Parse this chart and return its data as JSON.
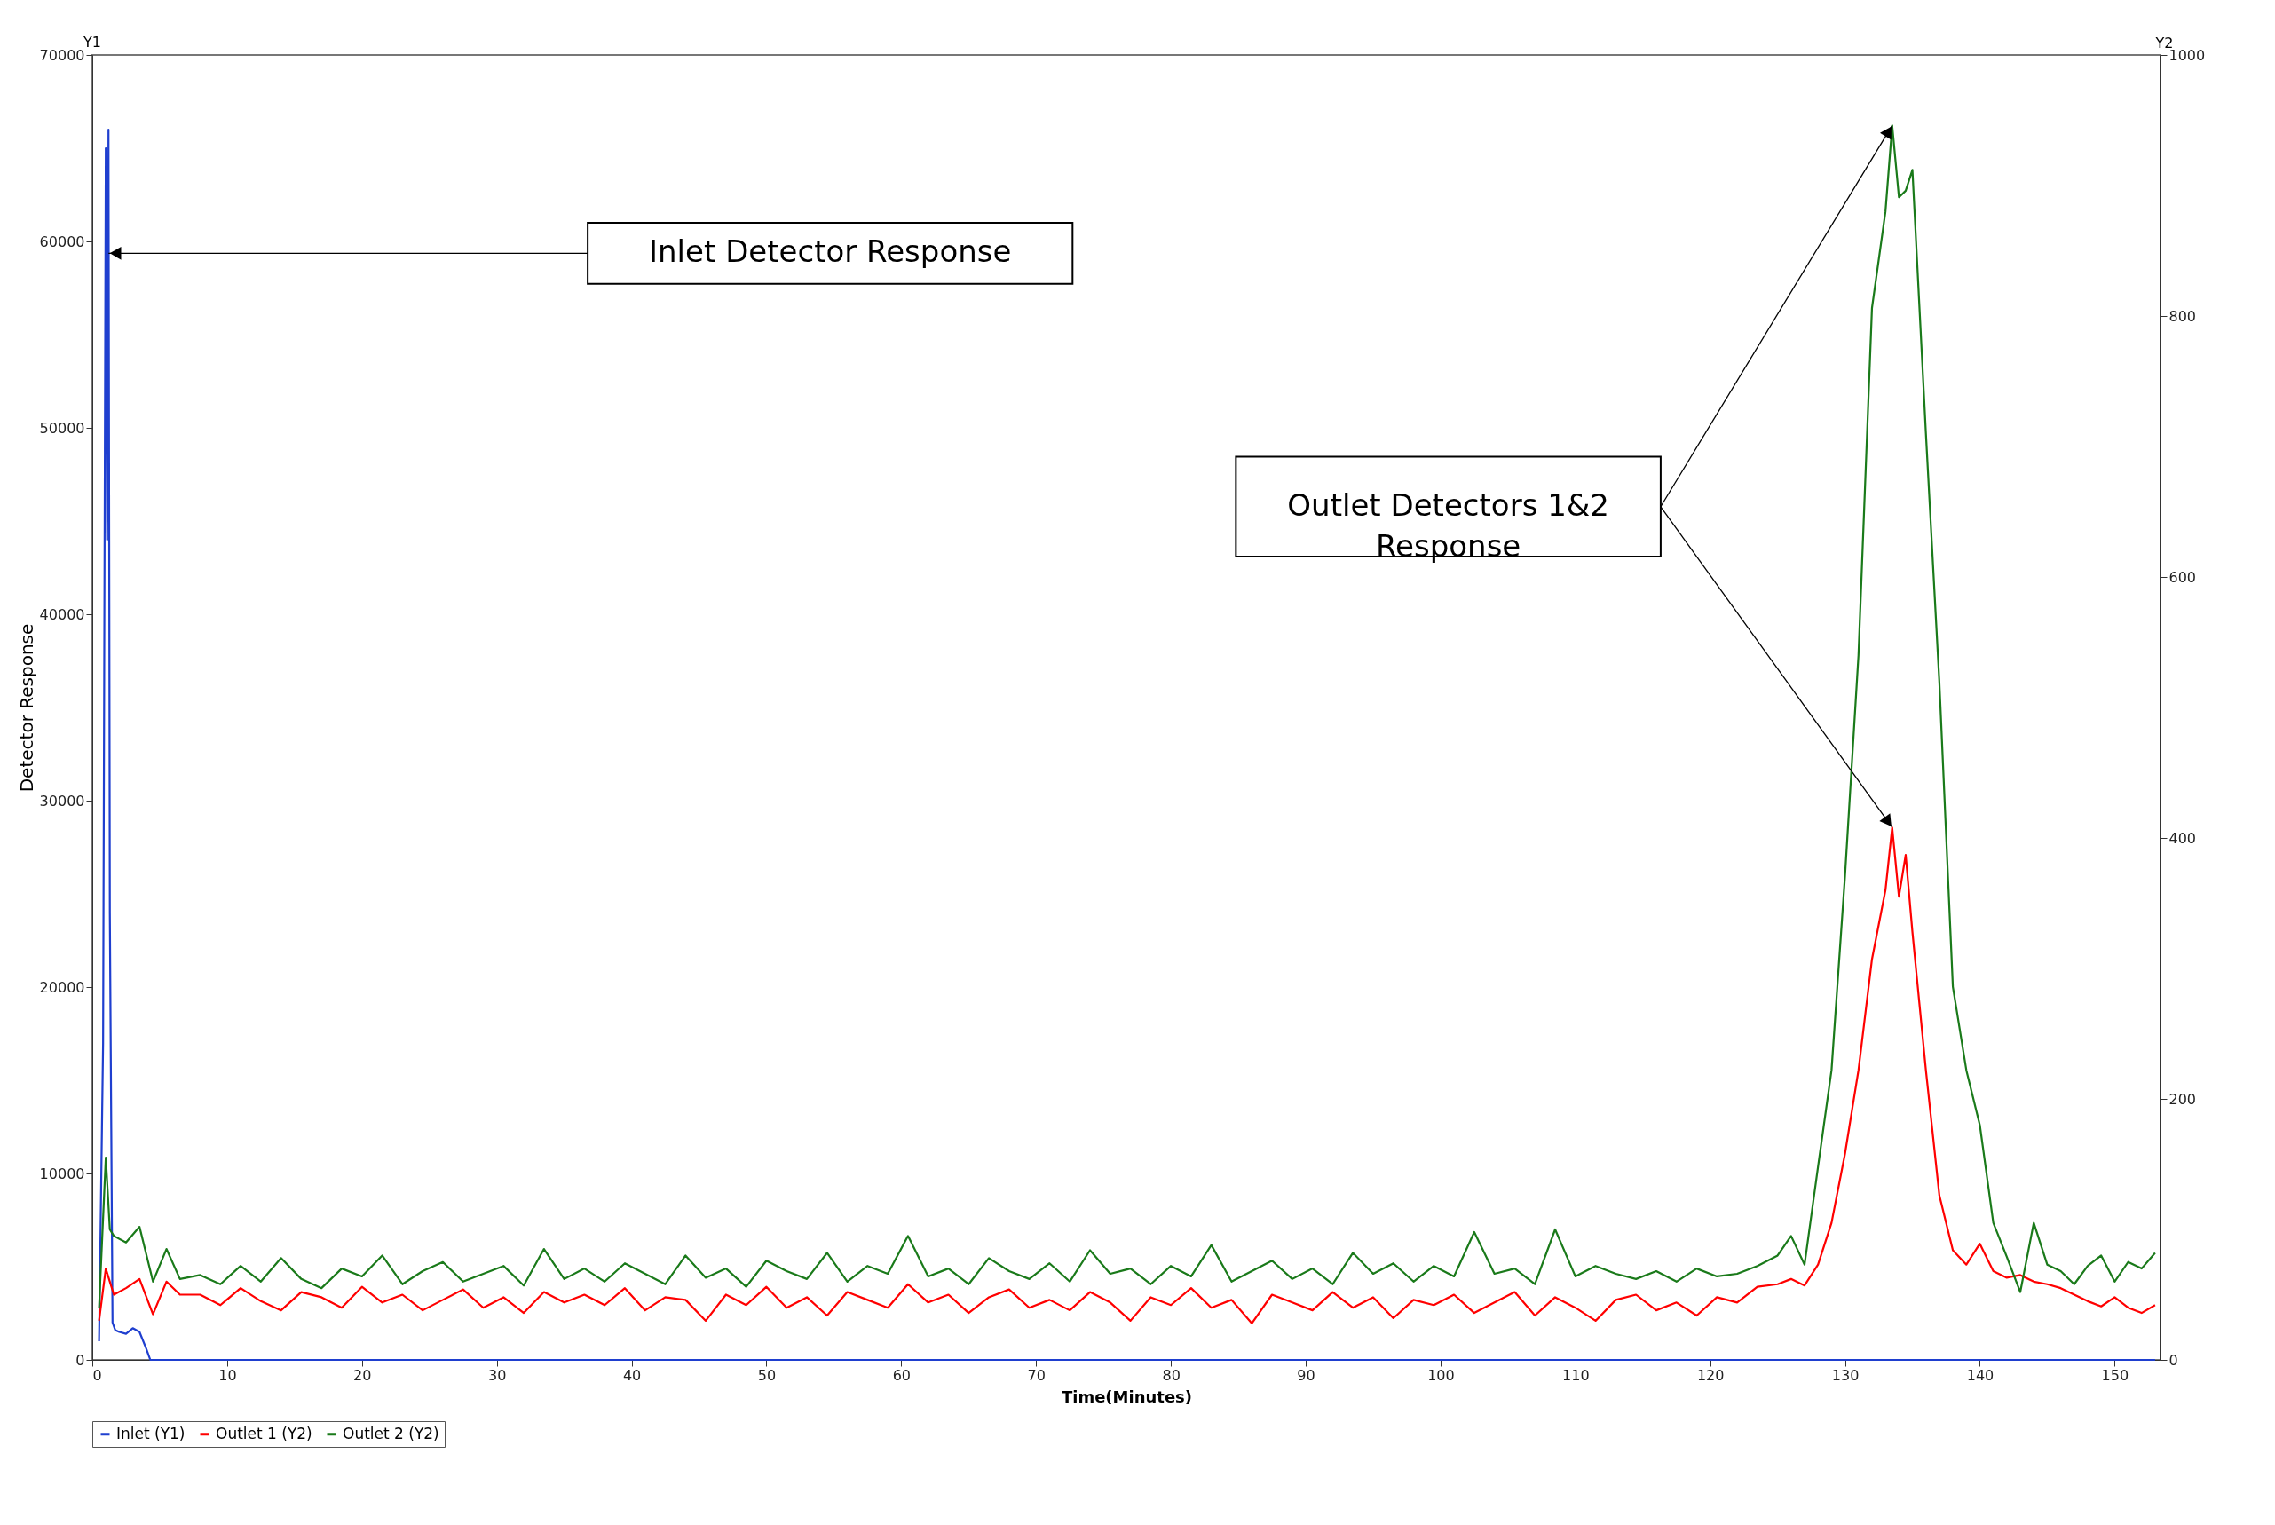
{
  "chart_data": {
    "type": "line",
    "xlabel": "Time(Minutes)",
    "ylabel": "Detector Response",
    "y2label": "Y2",
    "x": [
      0.5,
      1,
      1.3,
      1.6,
      2.5,
      3.5,
      4.5,
      5.5,
      6.5,
      8,
      9.5,
      11,
      12.5,
      14,
      15.5,
      17,
      18.5,
      20,
      21.5,
      23,
      24.5,
      26,
      27.5,
      29,
      30.5,
      32,
      33.5,
      35,
      36.5,
      38,
      39.5,
      41,
      42.5,
      44,
      45.5,
      47,
      48.5,
      50,
      51.5,
      53,
      54.5,
      56,
      57.5,
      59,
      60.5,
      62,
      63.5,
      65,
      66.5,
      68,
      69.5,
      71,
      72.5,
      74,
      75.5,
      77,
      78.5,
      80,
      81.5,
      83,
      84.5,
      86,
      87.5,
      89,
      90.5,
      92,
      93.5,
      95,
      96.5,
      98,
      99.5,
      101,
      102.5,
      104,
      105.5,
      107,
      108.5,
      110,
      111.5,
      113,
      114.5,
      116,
      117.5,
      119,
      120.5,
      122,
      123.5,
      125,
      126,
      127,
      128,
      129,
      130,
      131,
      132,
      133,
      133.5,
      134,
      134.5,
      135,
      136,
      137,
      138,
      139,
      140,
      141,
      142,
      143,
      144,
      145,
      146,
      147,
      148,
      149,
      150,
      151,
      152,
      153
    ],
    "series": [
      {
        "name": "Inlet (Y1)",
        "color": "#1f3fcf",
        "x": [
          0.5,
          0.8,
          1,
          1.1,
          1.2,
          1.3,
          1.5,
          1.7,
          2,
          2.5,
          3,
          3.5,
          4,
          4.3,
          4.6,
          10,
          50,
          100,
          153
        ],
        "values": [
          1000,
          17000,
          65000,
          44000,
          66000,
          24000,
          2000,
          1600,
          1500,
          1400,
          1700,
          1500,
          600,
          0,
          0,
          0,
          0,
          0,
          0
        ]
      },
      {
        "name": "Outlet 1 (Y2)",
        "color": "#ff0000",
        "axis": "y2",
        "values": [
          30,
          70,
          60,
          50,
          55,
          62,
          35,
          60,
          50,
          50,
          42,
          55,
          45,
          38,
          52,
          48,
          40,
          56,
          44,
          50,
          38,
          46,
          54,
          40,
          48,
          36,
          52,
          44,
          50,
          42,
          55,
          38,
          48,
          46,
          30,
          50,
          42,
          56,
          40,
          48,
          34,
          52,
          46,
          40,
          58,
          44,
          50,
          36,
          48,
          54,
          40,
          46,
          38,
          52,
          44,
          30,
          48,
          42,
          55,
          40,
          46,
          28,
          50,
          44,
          38,
          52,
          40,
          48,
          32,
          46,
          42,
          50,
          36,
          44,
          52,
          34,
          48,
          40,
          30,
          46,
          50,
          38,
          44,
          34,
          48,
          44,
          56,
          58,
          62,
          57,
          73,
          105,
          158,
          222,
          307,
          360,
          408,
          355,
          387,
          328,
          222,
          126,
          84,
          73,
          89,
          68,
          63,
          65,
          60,
          58,
          55,
          50,
          45,
          41,
          48,
          40,
          36,
          42
        ]
      },
      {
        "name": "Outlet 2 (Y2)",
        "color": "#1a7a1a",
        "axis": "y2",
        "values": [
          40,
          155,
          100,
          95,
          90,
          102,
          60,
          85,
          62,
          65,
          58,
          72,
          60,
          78,
          62,
          55,
          70,
          64,
          80,
          58,
          68,
          75,
          60,
          66,
          72,
          57,
          85,
          62,
          70,
          60,
          74,
          66,
          58,
          80,
          63,
          70,
          56,
          76,
          68,
          62,
          82,
          60,
          72,
          66,
          95,
          64,
          70,
          58,
          78,
          68,
          62,
          74,
          60,
          84,
          66,
          70,
          58,
          72,
          64,
          88,
          60,
          68,
          76,
          62,
          70,
          58,
          82,
          66,
          74,
          60,
          72,
          64,
          98,
          66,
          70,
          58,
          100,
          64,
          72,
          66,
          62,
          68,
          60,
          70,
          64,
          66,
          72,
          80,
          95,
          73,
          148,
          222,
          371,
          540,
          806,
          880,
          946,
          891,
          896,
          912,
          710,
          519,
          286,
          222,
          180,
          105,
          79,
          52,
          105,
          73,
          68,
          58,
          72,
          80,
          60,
          75,
          70,
          82
        ]
      }
    ],
    "xlim": [
      0,
      153.4
    ],
    "xticks": [
      0,
      10,
      20,
      30,
      40,
      50,
      60,
      70,
      80,
      90,
      100,
      110,
      120,
      130,
      140,
      150
    ],
    "ylim": [
      0,
      70000
    ],
    "yticks": [
      0,
      10000,
      20000,
      30000,
      40000,
      50000,
      60000,
      70000
    ],
    "y2lim": [
      0,
      1000
    ],
    "y2ticks": [
      0,
      200,
      400,
      600,
      800,
      1000
    ],
    "grid": false,
    "legend": "bottom",
    "annotations": [
      "Y1",
      "Inlet Detector Response",
      "Outlet Detectors 1&2 Response"
    ]
  }
}
